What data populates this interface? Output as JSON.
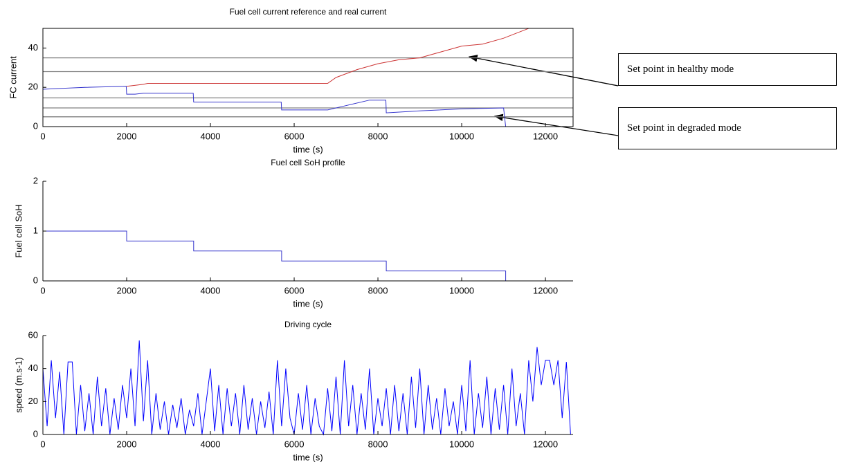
{
  "chart_data": [
    {
      "type": "line",
      "title": "Fuel cell current reference and real current",
      "xlabel": "time (s)",
      "ylabel": "FC current",
      "xlim": [
        0,
        12660
      ],
      "ylim": [
        0,
        50
      ],
      "xticks": [
        0,
        2000,
        4000,
        6000,
        8000,
        10000,
        12000
      ],
      "yticks": [
        0,
        20,
        40
      ],
      "box": true,
      "hlines": [
        35,
        28,
        14.6,
        9.5,
        5
      ],
      "hline_color": "#808080",
      "series": [
        {
          "color": "#3333cc",
          "x": [
            0,
            1000,
            1990,
            2000,
            2200,
            2400,
            3590,
            3600,
            5690,
            5700,
            6800,
            7200,
            7800,
            8190,
            8200,
            9000,
            10000,
            11000,
            11050
          ],
          "values": [
            19,
            20,
            20.5,
            16.5,
            16.5,
            17,
            17,
            12.5,
            12.5,
            8.5,
            8.5,
            10.5,
            13.5,
            13.5,
            7,
            8,
            9,
            9.5,
            0
          ]
        },
        {
          "color": "#cc3333",
          "x": [
            2000,
            2400,
            2500,
            6800,
            7000,
            7500,
            8000,
            8500,
            9000,
            9500,
            10000,
            10500,
            11000,
            11600
          ],
          "values": [
            20.5,
            21.5,
            22,
            22,
            25,
            29,
            32,
            34,
            35,
            38,
            41,
            42,
            45,
            50
          ]
        }
      ]
    },
    {
      "type": "line",
      "title": "Fuel cell SoH profile",
      "xlabel": "time (s)",
      "ylabel": "Fuel cell SoH",
      "xlim": [
        0,
        12660
      ],
      "ylim": [
        0,
        2
      ],
      "xticks": [
        0,
        2000,
        4000,
        6000,
        8000,
        10000,
        12000
      ],
      "yticks": [
        0,
        1,
        2
      ],
      "box": false,
      "series": [
        {
          "color": "#3333cc",
          "x": [
            0,
            2000,
            2000,
            3600,
            3600,
            5700,
            5700,
            8200,
            8200,
            11050,
            11050,
            12660
          ],
          "values": [
            1,
            1,
            0.8,
            0.8,
            0.6,
            0.6,
            0.4,
            0.4,
            0.2,
            0.2,
            0,
            0
          ]
        }
      ]
    },
    {
      "type": "line",
      "title": "Driving cycle",
      "xlabel": "time (s)",
      "ylabel": "speed (m.s-1)",
      "xlim": [
        0,
        12660
      ],
      "ylim": [
        0,
        60
      ],
      "xticks": [
        0,
        2000,
        4000,
        6000,
        8000,
        10000,
        12000
      ],
      "yticks": [
        0,
        20,
        40,
        60
      ],
      "box": false,
      "series": [
        {
          "color": "#0000ff",
          "x": [
            0,
            100,
            200,
            300,
            400,
            500,
            600,
            700,
            800,
            900,
            1000,
            1100,
            1200,
            1300,
            1400,
            1500,
            1600,
            1700,
            1800,
            1900,
            2000,
            2100,
            2200,
            2300,
            2400,
            2500,
            2600,
            2700,
            2800,
            2900,
            3000,
            3100,
            3200,
            3300,
            3400,
            3500,
            3600,
            3700,
            3800,
            3900,
            4000,
            4100,
            4200,
            4300,
            4400,
            4500,
            4600,
            4700,
            4800,
            4900,
            5000,
            5100,
            5200,
            5300,
            5400,
            5500,
            5600,
            5700,
            5800,
            5900,
            6000,
            6100,
            6200,
            6300,
            6400,
            6500,
            6600,
            6700,
            6800,
            6900,
            7000,
            7100,
            7200,
            7300,
            7400,
            7500,
            7600,
            7700,
            7800,
            7900,
            8000,
            8100,
            8200,
            8300,
            8400,
            8500,
            8600,
            8700,
            8800,
            8900,
            9000,
            9100,
            9200,
            9300,
            9400,
            9500,
            9600,
            9700,
            9800,
            9900,
            10000,
            10100,
            10200,
            10300,
            10400,
            10500,
            10600,
            10700,
            10800,
            10900,
            11000,
            11100,
            11200,
            11300,
            11400,
            11500,
            11600,
            11700,
            11800,
            11900,
            12000,
            12100,
            12200,
            12300,
            12400,
            12500,
            12600
          ],
          "values": [
            40,
            5,
            45,
            10,
            38,
            0,
            44,
            44,
            0,
            30,
            2,
            25,
            0,
            35,
            5,
            28,
            0,
            22,
            3,
            30,
            10,
            40,
            5,
            57,
            8,
            45,
            0,
            25,
            3,
            20,
            0,
            18,
            4,
            22,
            0,
            15,
            5,
            25,
            0,
            20,
            40,
            2,
            30,
            0,
            28,
            5,
            25,
            0,
            30,
            3,
            22,
            0,
            20,
            4,
            26,
            0,
            45,
            5,
            40,
            10,
            0,
            25,
            3,
            30,
            0,
            22,
            5,
            0,
            28,
            2,
            35,
            0,
            45,
            5,
            30,
            0,
            25,
            3,
            40,
            0,
            22,
            5,
            28,
            0,
            30,
            2,
            25,
            0,
            35,
            4,
            40,
            0,
            30,
            3,
            22,
            0,
            28,
            5,
            20,
            0,
            30,
            2,
            45,
            0,
            25,
            4,
            35,
            0,
            28,
            3,
            30,
            0,
            40,
            5,
            25,
            0,
            45,
            20,
            53,
            30,
            45,
            45,
            30,
            45,
            10,
            44,
            0
          ]
        }
      ]
    }
  ],
  "annotations": [
    {
      "text": "Set point in healthy mode"
    },
    {
      "text": "Set point in degraded mode"
    }
  ]
}
